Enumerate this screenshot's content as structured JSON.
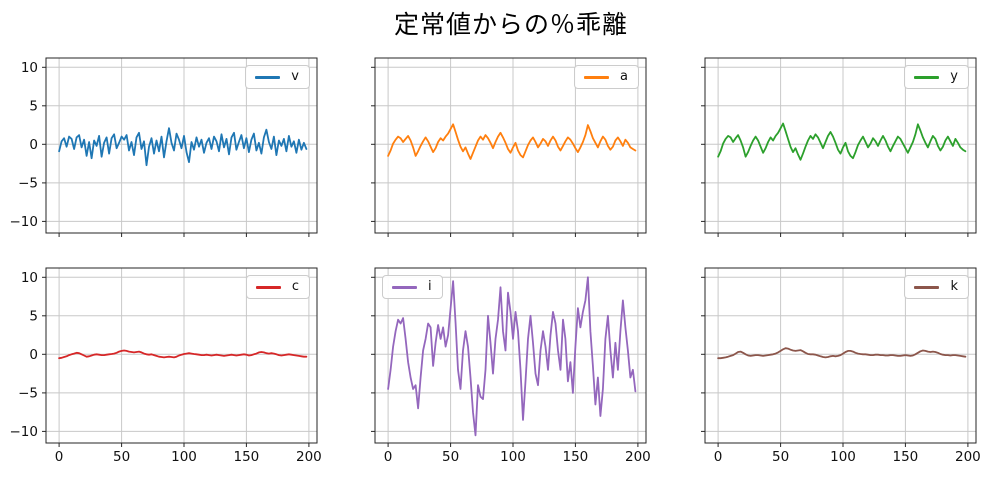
{
  "title": "定常値からの％乖離",
  "chart_data": {
    "type": "line",
    "title": "定常値からの％乖離",
    "layout": "2 rows x 3 cols, shared axes",
    "grid": true,
    "x_ticks": [
      0,
      50,
      100,
      150,
      200
    ],
    "y_ticks": [
      10,
      5,
      0,
      -5,
      -10
    ],
    "xlim": [
      -10.5,
      206.5
    ],
    "ylim": [
      -11.5,
      11.2
    ],
    "x_start": 0,
    "x_step": 2,
    "n_points": 100,
    "grid_color": "#c8c8c8",
    "spine_color": "#262626",
    "series": [
      {
        "name": "v",
        "color": "#1f77b4",
        "legend_loc": "upper-right",
        "values": [
          -0.9,
          0.4,
          0.8,
          -0.3,
          1.0,
          0.7,
          -0.6,
          0.9,
          1.2,
          -0.4,
          0.6,
          -1.5,
          0.3,
          -1.8,
          0.5,
          -0.2,
          1.1,
          -1.6,
          0.2,
          0.9,
          -1.2,
          0.8,
          1.3,
          -0.5,
          0.2,
          1.0,
          0.6,
          1.2,
          -0.8,
          0.3,
          -1.4,
          0.9,
          1.5,
          -0.6,
          0.4,
          -2.7,
          -0.3,
          0.8,
          -1.2,
          0.5,
          -0.9,
          1.0,
          -1.7,
          0.4,
          2.1,
          0.2,
          -0.8,
          1.4,
          0.6,
          -0.5,
          1.1,
          -1.0,
          -2.3,
          0.3,
          -0.7,
          0.9,
          -0.3,
          0.6,
          -1.1,
          0.2,
          0.8,
          -0.6,
          1.0,
          0.4,
          -0.9,
          1.3,
          -0.4,
          0.7,
          -1.3,
          0.9,
          1.5,
          -0.7,
          0.3,
          1.2,
          -0.5,
          0.8,
          -1.0,
          0.6,
          1.4,
          -0.8,
          0.2,
          -1.2,
          0.9,
          1.9,
          0.3,
          -0.6,
          1.0,
          -1.4,
          0.5,
          -0.2,
          0.7,
          -0.9,
          1.1,
          -0.3,
          0.4,
          -1.1,
          0.6,
          -0.7,
          0.2,
          -0.6
        ]
      },
      {
        "name": "a",
        "color": "#ff7f0e",
        "legend_loc": "upper-right",
        "values": [
          -1.5,
          -0.8,
          0.1,
          0.6,
          1.0,
          0.8,
          0.3,
          0.7,
          1.1,
          0.5,
          -0.4,
          -1.5,
          -0.9,
          -0.2,
          0.4,
          0.9,
          0.4,
          -0.3,
          -1.0,
          -0.5,
          0.3,
          0.8,
          0.5,
          1.0,
          1.4,
          2.0,
          2.6,
          1.6,
          0.6,
          -0.3,
          -0.9,
          -0.4,
          -1.2,
          -1.9,
          -1.1,
          -0.3,
          0.5,
          1.0,
          0.6,
          1.2,
          0.8,
          0.2,
          -0.5,
          0.3,
          1.0,
          1.5,
          0.9,
          0.2,
          -0.6,
          -1.1,
          -0.4,
          0.2,
          -0.8,
          -1.4,
          -1.7,
          -0.9,
          -0.1,
          0.5,
          0.9,
          0.3,
          -0.4,
          0.1,
          0.7,
          0.4,
          -0.2,
          0.5,
          1.0,
          0.5,
          -0.3,
          -0.8,
          -0.2,
          0.4,
          0.9,
          0.6,
          0.1,
          -0.5,
          -1.0,
          -0.4,
          0.3,
          1.2,
          2.5,
          1.7,
          0.8,
          0.2,
          -0.4,
          0.4,
          1.0,
          0.6,
          -0.2,
          -0.7,
          -0.3,
          0.5,
          0.9,
          0.4,
          -0.2,
          0.6,
          0.2,
          -0.4,
          -0.6,
          -0.8
        ]
      },
      {
        "name": "y",
        "color": "#2ca02c",
        "legend_loc": "upper-right",
        "values": [
          -1.6,
          -0.9,
          0.1,
          0.7,
          1.1,
          0.9,
          0.3,
          0.8,
          1.2,
          0.5,
          -0.4,
          -1.6,
          -1.0,
          -0.2,
          0.5,
          1.0,
          0.5,
          -0.3,
          -1.1,
          -0.5,
          0.3,
          0.9,
          0.5,
          1.1,
          1.5,
          2.1,
          2.7,
          1.7,
          0.7,
          -0.3,
          -1.0,
          -0.5,
          -1.3,
          -2.0,
          -1.2,
          -0.3,
          0.5,
          1.1,
          0.7,
          1.3,
          0.9,
          0.2,
          -0.5,
          0.3,
          1.1,
          1.6,
          1.0,
          0.2,
          -0.7,
          -1.2,
          -0.4,
          0.2,
          -0.9,
          -1.5,
          -1.8,
          -1.0,
          -0.1,
          0.5,
          1.0,
          0.3,
          -0.4,
          0.1,
          0.8,
          0.4,
          -0.2,
          0.5,
          1.1,
          0.5,
          -0.3,
          -0.9,
          -0.2,
          0.4,
          1.0,
          0.7,
          0.1,
          -0.5,
          -1.1,
          -0.4,
          0.3,
          1.3,
          2.6,
          1.8,
          0.9,
          0.2,
          -0.4,
          0.4,
          1.1,
          0.7,
          -0.2,
          -0.8,
          -0.3,
          0.5,
          1.0,
          0.4,
          -0.2,
          0.7,
          0.2,
          -0.4,
          -0.7,
          -0.9
        ]
      },
      {
        "name": "c",
        "color": "#d62728",
        "legend_loc": "upper-right",
        "values": [
          -0.5,
          -0.45,
          -0.35,
          -0.25,
          -0.1,
          0.0,
          0.1,
          0.2,
          0.15,
          0.0,
          -0.15,
          -0.3,
          -0.25,
          -0.15,
          -0.05,
          0.0,
          -0.05,
          -0.1,
          -0.1,
          -0.05,
          0.0,
          0.05,
          0.1,
          0.2,
          0.35,
          0.45,
          0.5,
          0.45,
          0.35,
          0.3,
          0.25,
          0.3,
          0.35,
          0.25,
          0.1,
          0.0,
          -0.05,
          0.0,
          -0.1,
          -0.2,
          -0.3,
          -0.35,
          -0.4,
          -0.35,
          -0.3,
          -0.35,
          -0.4,
          -0.3,
          -0.15,
          -0.05,
          0.05,
          0.1,
          0.15,
          0.1,
          0.05,
          0.0,
          -0.05,
          -0.1,
          -0.1,
          -0.05,
          -0.1,
          -0.15,
          -0.1,
          -0.05,
          -0.1,
          -0.15,
          -0.2,
          -0.15,
          -0.1,
          -0.05,
          -0.1,
          -0.15,
          -0.1,
          -0.05,
          0.0,
          -0.05,
          -0.15,
          -0.1,
          0.0,
          0.1,
          0.25,
          0.3,
          0.25,
          0.15,
          0.1,
          0.15,
          0.1,
          0.0,
          -0.1,
          -0.15,
          -0.1,
          -0.05,
          0.0,
          -0.05,
          -0.1,
          -0.15,
          -0.2,
          -0.25,
          -0.3,
          -0.3
        ]
      },
      {
        "name": "i",
        "color": "#9467bd",
        "legend_loc": "upper-left",
        "values": [
          -4.5,
          -2.0,
          1.0,
          3.0,
          4.5,
          4.0,
          4.7,
          2.0,
          -1.0,
          -3.0,
          -4.5,
          -4.0,
          -7.0,
          -3.0,
          0.5,
          2.0,
          4.0,
          3.5,
          -1.5,
          1.5,
          3.8,
          2.0,
          3.5,
          1.0,
          2.5,
          6.0,
          9.5,
          4.0,
          -2.0,
          -4.5,
          0.5,
          3.0,
          1.0,
          -3.0,
          -7.5,
          -10.5,
          -4.0,
          -5.5,
          -5.8,
          -2.0,
          5.0,
          1.5,
          -2.5,
          2.0,
          4.5,
          8.7,
          3.0,
          0.5,
          8.0,
          5.5,
          2.0,
          5.5,
          3.0,
          -2.0,
          -8.5,
          -3.5,
          2.0,
          5.0,
          1.5,
          -2.5,
          -4.0,
          0.5,
          3.0,
          1.0,
          -2.0,
          2.5,
          5.5,
          4.0,
          0.5,
          -2.0,
          4.5,
          2.0,
          -3.5,
          -1.0,
          -5.0,
          1.0,
          6.0,
          3.5,
          5.5,
          7.0,
          10.0,
          3.0,
          -1.5,
          -6.5,
          -3.0,
          -8.0,
          -4.5,
          2.0,
          5.0,
          0.5,
          -3.0,
          1.5,
          -2.0,
          3.0,
          7.0,
          3.5,
          0.5,
          -3.0,
          -2.0,
          -4.8
        ]
      },
      {
        "name": "k",
        "color": "#8c564b",
        "legend_loc": "upper-right",
        "values": [
          -0.5,
          -0.5,
          -0.45,
          -0.4,
          -0.3,
          -0.2,
          -0.1,
          0.1,
          0.3,
          0.35,
          0.2,
          0.0,
          -0.15,
          -0.2,
          -0.15,
          -0.1,
          -0.1,
          -0.15,
          -0.2,
          -0.15,
          -0.1,
          -0.05,
          0.0,
          0.1,
          0.25,
          0.45,
          0.65,
          0.8,
          0.75,
          0.6,
          0.5,
          0.45,
          0.5,
          0.55,
          0.4,
          0.2,
          0.05,
          0.0,
          0.0,
          -0.05,
          -0.15,
          -0.25,
          -0.35,
          -0.4,
          -0.35,
          -0.25,
          -0.2,
          -0.25,
          -0.2,
          -0.1,
          0.1,
          0.3,
          0.45,
          0.45,
          0.35,
          0.2,
          0.1,
          0.05,
          0.0,
          0.0,
          -0.05,
          -0.1,
          -0.1,
          -0.05,
          -0.05,
          -0.1,
          -0.1,
          -0.15,
          -0.15,
          -0.1,
          -0.1,
          -0.15,
          -0.2,
          -0.2,
          -0.15,
          -0.1,
          -0.15,
          -0.2,
          -0.15,
          0.0,
          0.2,
          0.4,
          0.5,
          0.45,
          0.35,
          0.3,
          0.35,
          0.3,
          0.2,
          0.05,
          -0.05,
          -0.1,
          -0.1,
          -0.15,
          -0.1,
          -0.1,
          -0.15,
          -0.2,
          -0.25,
          -0.3
        ]
      }
    ]
  }
}
